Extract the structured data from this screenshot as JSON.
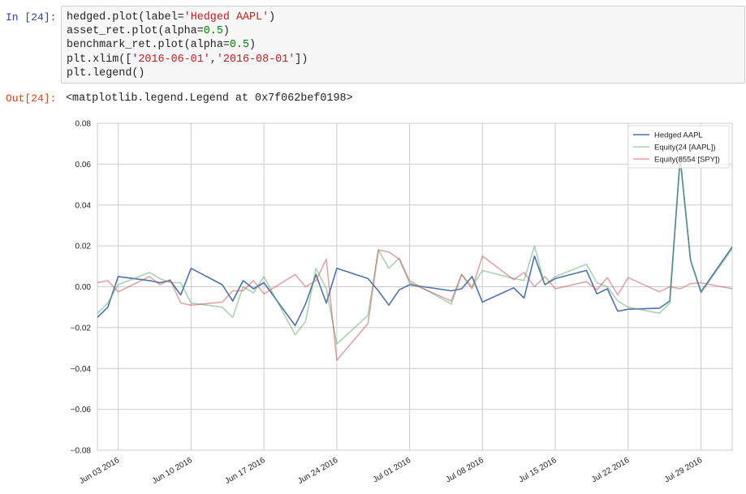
{
  "cell": {
    "in_prompt": "In [24]:",
    "out_prompt": "Out[24]:",
    "code_lines": [
      [
        {
          "t": "hedged.plot(label="
        },
        {
          "t": "'Hedged AAPL'",
          "c": "str"
        },
        {
          "t": ")"
        }
      ],
      [
        {
          "t": "asset_ret.plot(alpha="
        },
        {
          "t": "0.5",
          "c": "num"
        },
        {
          "t": ")"
        }
      ],
      [
        {
          "t": "benchmark_ret.plot(alpha="
        },
        {
          "t": "0.5",
          "c": "num"
        },
        {
          "t": ")"
        }
      ],
      [
        {
          "t": "plt.xlim(["
        },
        {
          "t": "'2016-06-01'",
          "c": "str"
        },
        {
          "t": ","
        },
        {
          "t": "'2016-08-01'",
          "c": "str"
        },
        {
          "t": "])"
        }
      ],
      [
        {
          "t": "plt.legend()"
        }
      ]
    ],
    "output_text": "<matplotlib.legend.Legend at 0x7f062bef0198>"
  },
  "chart_data": {
    "type": "line",
    "title": "",
    "xlabel": "",
    "ylabel": "",
    "xlim": [
      "2016-06-01",
      "2016-08-01"
    ],
    "ylim": [
      -0.08,
      0.08
    ],
    "yticks": [
      "0.08",
      "0.06",
      "0.04",
      "0.02",
      "0.00",
      "−0.02",
      "−0.04",
      "−0.06",
      "−0.08"
    ],
    "xticks": [
      {
        "date": "2016-06-03",
        "label": "Jun 03 2016"
      },
      {
        "date": "2016-06-10",
        "label": "Jun 10 2016"
      },
      {
        "date": "2016-06-17",
        "label": "Jun 17 2016"
      },
      {
        "date": "2016-06-24",
        "label": "Jun 24 2016"
      },
      {
        "date": "2016-07-01",
        "label": "Jul 01 2016"
      },
      {
        "date": "2016-07-08",
        "label": "Jul 08 2016"
      },
      {
        "date": "2016-07-15",
        "label": "Jul 15 2016"
      },
      {
        "date": "2016-07-22",
        "label": "Jul 22 2016"
      },
      {
        "date": "2016-07-29",
        "label": "Jul 29 2016"
      }
    ],
    "grid": true,
    "legend_position": "top-right",
    "series": [
      {
        "name": "Hedged AAPL",
        "color": "#4C72B0",
        "alpha": 1.0,
        "points": [
          [
            "2016-06-01",
            -0.015
          ],
          [
            "2016-06-02",
            -0.01
          ],
          [
            "2016-06-03",
            0.005
          ],
          [
            "2016-06-06",
            0.003
          ],
          [
            "2016-06-07",
            0.002
          ],
          [
            "2016-06-08",
            0.003
          ],
          [
            "2016-06-09",
            -0.004
          ],
          [
            "2016-06-10",
            0.009
          ],
          [
            "2016-06-13",
            0.001
          ],
          [
            "2016-06-14",
            -0.007
          ],
          [
            "2016-06-15",
            0.003
          ],
          [
            "2016-06-16",
            -0.001
          ],
          [
            "2016-06-17",
            0.002
          ],
          [
            "2016-06-20",
            -0.019
          ],
          [
            "2016-06-21",
            -0.0085
          ],
          [
            "2016-06-22",
            0.006
          ],
          [
            "2016-06-23",
            -0.008
          ],
          [
            "2016-06-24",
            0.009
          ],
          [
            "2016-06-27",
            0.004
          ],
          [
            "2016-06-28",
            -0.002
          ],
          [
            "2016-06-29",
            -0.009
          ],
          [
            "2016-06-30",
            -0.0015
          ],
          [
            "2016-07-01",
            0.001
          ],
          [
            "2016-07-05",
            -0.002
          ],
          [
            "2016-07-06",
            -0.001
          ],
          [
            "2016-07-07",
            0.005
          ],
          [
            "2016-07-08",
            -0.0075
          ],
          [
            "2016-07-11",
            -0.0005
          ],
          [
            "2016-07-12",
            -0.0055
          ],
          [
            "2016-07-13",
            0.015
          ],
          [
            "2016-07-14",
            0.001
          ],
          [
            "2016-07-15",
            0.004
          ],
          [
            "2016-07-18",
            0.008
          ],
          [
            "2016-07-19",
            -0.0035
          ],
          [
            "2016-07-20",
            -0.001
          ],
          [
            "2016-07-21",
            -0.012
          ],
          [
            "2016-07-22",
            -0.011
          ],
          [
            "2016-07-25",
            -0.0105
          ],
          [
            "2016-07-26",
            -0.007
          ],
          [
            "2016-07-27",
            0.063
          ],
          [
            "2016-07-28",
            0.013
          ],
          [
            "2016-07-29",
            -0.0025
          ],
          [
            "2016-08-01",
            0.0195
          ]
        ]
      },
      {
        "name": "Equity(24 [AAPL])",
        "color": "#55A868",
        "alpha": 0.5,
        "points": [
          [
            "2016-06-01",
            -0.013
          ],
          [
            "2016-06-02",
            -0.008
          ],
          [
            "2016-06-03",
            0.001
          ],
          [
            "2016-06-06",
            0.007
          ],
          [
            "2016-06-07",
            0.004
          ],
          [
            "2016-06-08",
            0.002
          ],
          [
            "2016-06-09",
            0.002
          ],
          [
            "2016-06-10",
            -0.008
          ],
          [
            "2016-06-13",
            -0.01
          ],
          [
            "2016-06-14",
            -0.015
          ],
          [
            "2016-06-15",
            0.0
          ],
          [
            "2016-06-16",
            -0.003
          ],
          [
            "2016-06-17",
            0.005
          ],
          [
            "2016-06-20",
            -0.0235
          ],
          [
            "2016-06-21",
            -0.017
          ],
          [
            "2016-06-22",
            0.009
          ],
          [
            "2016-06-23",
            -0.001
          ],
          [
            "2016-06-24",
            -0.028
          ],
          [
            "2016-06-27",
            -0.014
          ],
          [
            "2016-06-28",
            0.018
          ],
          [
            "2016-06-29",
            0.009
          ],
          [
            "2016-06-30",
            0.014
          ],
          [
            "2016-07-01",
            0.003
          ],
          [
            "2016-07-05",
            -0.0085
          ],
          [
            "2016-07-06",
            0.006
          ],
          [
            "2016-07-07",
            0.0
          ],
          [
            "2016-07-08",
            0.008
          ],
          [
            "2016-07-11",
            0.004
          ],
          [
            "2016-07-12",
            0.003
          ],
          [
            "2016-07-13",
            0.02
          ],
          [
            "2016-07-14",
            0.001
          ],
          [
            "2016-07-15",
            0.005
          ],
          [
            "2016-07-18",
            0.011
          ],
          [
            "2016-07-19",
            0.002
          ],
          [
            "2016-07-20",
            0.0
          ],
          [
            "2016-07-21",
            -0.007
          ],
          [
            "2016-07-22",
            -0.01
          ],
          [
            "2016-07-25",
            -0.013
          ],
          [
            "2016-07-26",
            -0.008
          ],
          [
            "2016-07-27",
            0.063
          ],
          [
            "2016-07-28",
            0.013
          ],
          [
            "2016-07-29",
            -0.003
          ],
          [
            "2016-08-01",
            0.0185
          ]
        ]
      },
      {
        "name": "Equity(8554 [SPY])",
        "color": "#C44E52",
        "alpha": 0.5,
        "points": [
          [
            "2016-06-01",
            0.002
          ],
          [
            "2016-06-02",
            0.003
          ],
          [
            "2016-06-03",
            -0.0025
          ],
          [
            "2016-06-06",
            0.005
          ],
          [
            "2016-06-07",
            0.001
          ],
          [
            "2016-06-08",
            0.0035
          ],
          [
            "2016-06-09",
            -0.008
          ],
          [
            "2016-06-10",
            -0.009
          ],
          [
            "2016-06-13",
            -0.0075
          ],
          [
            "2016-06-14",
            -0.002
          ],
          [
            "2016-06-15",
            -0.002
          ],
          [
            "2016-06-16",
            0.003
          ],
          [
            "2016-06-17",
            -0.0035
          ],
          [
            "2016-06-20",
            0.006
          ],
          [
            "2016-06-21",
            0.0
          ],
          [
            "2016-06-22",
            0.003
          ],
          [
            "2016-06-23",
            0.0135
          ],
          [
            "2016-06-24",
            -0.036
          ],
          [
            "2016-06-27",
            -0.018
          ],
          [
            "2016-06-28",
            0.018
          ],
          [
            "2016-06-29",
            0.017
          ],
          [
            "2016-06-30",
            0.0135
          ],
          [
            "2016-07-01",
            0.002
          ],
          [
            "2016-07-05",
            -0.007
          ],
          [
            "2016-07-06",
            0.006
          ],
          [
            "2016-07-07",
            -0.001
          ],
          [
            "2016-07-08",
            0.015
          ],
          [
            "2016-07-11",
            0.0035
          ],
          [
            "2016-07-12",
            0.007
          ],
          [
            "2016-07-13",
            0.0
          ],
          [
            "2016-07-14",
            0.005
          ],
          [
            "2016-07-15",
            -0.001
          ],
          [
            "2016-07-18",
            0.0025
          ],
          [
            "2016-07-19",
            -0.0015
          ],
          [
            "2016-07-20",
            0.0045
          ],
          [
            "2016-07-21",
            -0.004
          ],
          [
            "2016-07-22",
            0.0045
          ],
          [
            "2016-07-25",
            -0.0025
          ],
          [
            "2016-07-26",
            0.0
          ],
          [
            "2016-07-27",
            -0.001
          ],
          [
            "2016-07-28",
            0.0015
          ],
          [
            "2016-07-29",
            0.002
          ],
          [
            "2016-08-01",
            -0.001
          ]
        ]
      }
    ]
  }
}
